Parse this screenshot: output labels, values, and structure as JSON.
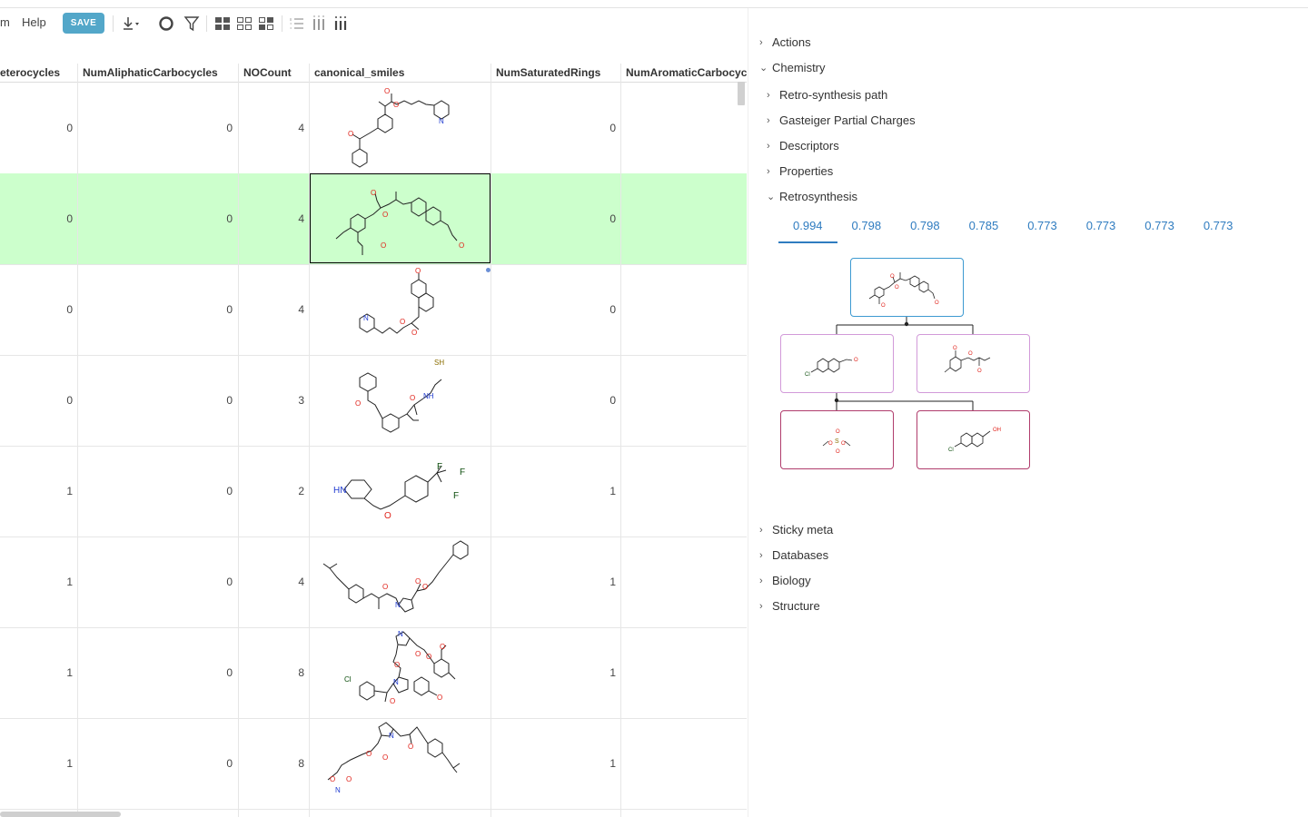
{
  "toolbar": {
    "menu_partial": "m",
    "help": "Help",
    "save": "SAVE"
  },
  "grid": {
    "columns": [
      "eterocycles",
      "NumAliphaticCarbocycles",
      "NOCount",
      "canonical_smiles",
      "NumSaturatedRings",
      "NumAromaticCarbocyc"
    ],
    "rows": [
      {
        "c1": "0",
        "c2": "0",
        "c3": "4",
        "c5": "0"
      },
      {
        "c1": "0",
        "c2": "0",
        "c3": "4",
        "c5": "0"
      },
      {
        "c1": "0",
        "c2": "0",
        "c3": "4",
        "c5": "0"
      },
      {
        "c1": "0",
        "c2": "0",
        "c3": "3",
        "c5": "0"
      },
      {
        "c1": "1",
        "c2": "0",
        "c3": "2",
        "c5": "1"
      },
      {
        "c1": "1",
        "c2": "0",
        "c3": "4",
        "c5": "1"
      },
      {
        "c1": "1",
        "c2": "0",
        "c3": "8",
        "c5": "1"
      },
      {
        "c1": "1",
        "c2": "0",
        "c3": "8",
        "c5": "1"
      }
    ],
    "selected_row": 1,
    "atom_labels": {
      "N": "N",
      "O": "O",
      "SH": "SH",
      "NH": "NH",
      "HN": "HN",
      "F": "F",
      "Cl": "Cl",
      "OH": "OH",
      "S": "S"
    }
  },
  "panel": {
    "actions": "Actions",
    "chemistry": "Chemistry",
    "retro_path": "Retro-synthesis path",
    "gasteiger": "Gasteiger Partial Charges",
    "descriptors": "Descriptors",
    "properties": "Properties",
    "retrosynthesis": "Retrosynthesis",
    "scores": [
      "0.994",
      "0.798",
      "0.798",
      "0.785",
      "0.773",
      "0.773",
      "0.773",
      "0.773"
    ],
    "sticky_meta": "Sticky meta",
    "databases": "Databases",
    "biology": "Biology",
    "structure": "Structure"
  },
  "colors": {
    "accent": "#2f7cc0",
    "save_button": "#53a7c9",
    "selected_row": "#ccffcc",
    "tree_root_border": "#3d9ad1",
    "tree_node_border": "#d29ad9",
    "tree_leaf_border": "#b03c6c"
  }
}
